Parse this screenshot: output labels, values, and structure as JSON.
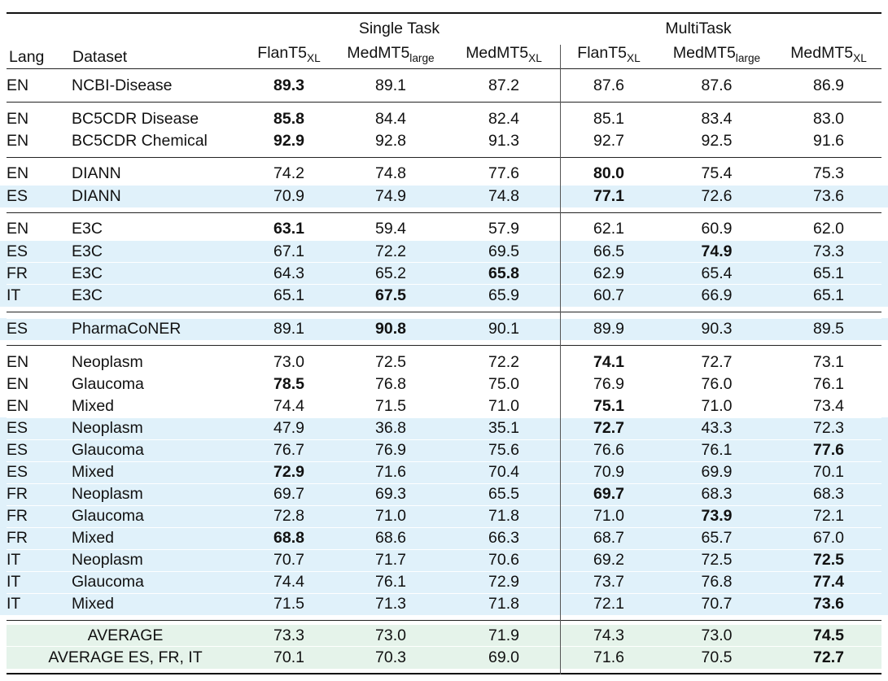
{
  "table": {
    "header": {
      "lang": "Lang",
      "dataset": "Dataset",
      "single_task": "Single Task",
      "multi_task": "MultiTask",
      "models": [
        {
          "name": "FlanT5",
          "sub": "XL"
        },
        {
          "name": "MedMT5",
          "sub": "large"
        },
        {
          "name": "MedMT5",
          "sub": "XL"
        },
        {
          "name": "FlanT5",
          "sub": "XL"
        },
        {
          "name": "MedMT5",
          "sub": "large"
        },
        {
          "name": "MedMT5",
          "sub": "XL"
        }
      ]
    },
    "groups": [
      {
        "rows": [
          {
            "lang": "EN",
            "dataset": "NCBI-Disease",
            "shade": "white",
            "values": [
              "89.3",
              "89.1",
              "87.2",
              "87.6",
              "87.6",
              "86.9"
            ],
            "bold": [
              0
            ]
          }
        ]
      },
      {
        "rows": [
          {
            "lang": "EN",
            "dataset": "BC5CDR Disease",
            "shade": "white",
            "values": [
              "85.8",
              "84.4",
              "82.4",
              "85.1",
              "83.4",
              "83.0"
            ],
            "bold": [
              0
            ]
          },
          {
            "lang": "EN",
            "dataset": "BC5CDR Chemical",
            "shade": "white",
            "values": [
              "92.9",
              "92.8",
              "91.3",
              "92.7",
              "92.5",
              "91.6"
            ],
            "bold": [
              0
            ]
          }
        ]
      },
      {
        "rows": [
          {
            "lang": "EN",
            "dataset": "DIANN",
            "shade": "white",
            "values": [
              "74.2",
              "74.8",
              "77.6",
              "80.0",
              "75.4",
              "75.3"
            ],
            "bold": [
              3
            ]
          },
          {
            "lang": "ES",
            "dataset": "DIANN",
            "shade": "blue",
            "values": [
              "70.9",
              "74.9",
              "74.8",
              "77.1",
              "72.6",
              "73.6"
            ],
            "bold": [
              3
            ]
          }
        ]
      },
      {
        "rows": [
          {
            "lang": "EN",
            "dataset": "E3C",
            "shade": "white",
            "values": [
              "63.1",
              "59.4",
              "57.9",
              "62.1",
              "60.9",
              "62.0"
            ],
            "bold": [
              0
            ]
          },
          {
            "lang": "ES",
            "dataset": "E3C",
            "shade": "blue",
            "values": [
              "67.1",
              "72.2",
              "69.5",
              "66.5",
              "74.9",
              "73.3"
            ],
            "bold": [
              4
            ]
          },
          {
            "lang": "FR",
            "dataset": "E3C",
            "shade": "blue",
            "values": [
              "64.3",
              "65.2",
              "65.8",
              "62.9",
              "65.4",
              "65.1"
            ],
            "bold": [
              2
            ]
          },
          {
            "lang": "IT",
            "dataset": "E3C",
            "shade": "blue",
            "values": [
              "65.1",
              "67.5",
              "65.9",
              "60.7",
              "66.9",
              "65.1"
            ],
            "bold": [
              1
            ]
          }
        ]
      },
      {
        "rows": [
          {
            "lang": "ES",
            "dataset": "PharmaCoNER",
            "shade": "blue",
            "values": [
              "89.1",
              "90.8",
              "90.1",
              "89.9",
              "90.3",
              "89.5"
            ],
            "bold": [
              1
            ]
          }
        ]
      },
      {
        "rows": [
          {
            "lang": "EN",
            "dataset": "Neoplasm",
            "shade": "white",
            "values": [
              "73.0",
              "72.5",
              "72.2",
              "74.1",
              "72.7",
              "73.1"
            ],
            "bold": [
              3
            ]
          },
          {
            "lang": "EN",
            "dataset": "Glaucoma",
            "shade": "white",
            "values": [
              "78.5",
              "76.8",
              "75.0",
              "76.9",
              "76.0",
              "76.1"
            ],
            "bold": [
              0
            ]
          },
          {
            "lang": "EN",
            "dataset": "Mixed",
            "shade": "white",
            "values": [
              "74.4",
              "71.5",
              "71.0",
              "75.1",
              "71.0",
              "73.4"
            ],
            "bold": [
              3
            ]
          },
          {
            "lang": "ES",
            "dataset": "Neoplasm",
            "shade": "blue",
            "values": [
              "47.9",
              "36.8",
              "35.1",
              "72.7",
              "43.3",
              "72.3"
            ],
            "bold": [
              3
            ]
          },
          {
            "lang": "ES",
            "dataset": "Glaucoma",
            "shade": "blue",
            "values": [
              "76.7",
              "76.9",
              "75.6",
              "76.6",
              "76.1",
              "77.6"
            ],
            "bold": [
              5
            ]
          },
          {
            "lang": "ES",
            "dataset": "Mixed",
            "shade": "blue",
            "values": [
              "72.9",
              "71.6",
              "70.4",
              "70.9",
              "69.9",
              "70.1"
            ],
            "bold": [
              0
            ]
          },
          {
            "lang": "FR",
            "dataset": "Neoplasm",
            "shade": "blue",
            "values": [
              "69.7",
              "69.3",
              "65.5",
              "69.7",
              "68.3",
              "68.3"
            ],
            "bold": [
              3
            ]
          },
          {
            "lang": "FR",
            "dataset": "Glaucoma",
            "shade": "blue",
            "values": [
              "72.8",
              "71.0",
              "71.8",
              "71.0",
              "73.9",
              "72.1"
            ],
            "bold": [
              4
            ]
          },
          {
            "lang": "FR",
            "dataset": "Mixed",
            "shade": "blue",
            "values": [
              "68.8",
              "68.6",
              "66.3",
              "68.7",
              "65.7",
              "67.0"
            ],
            "bold": [
              0
            ]
          },
          {
            "lang": "IT",
            "dataset": "Neoplasm",
            "shade": "blue",
            "values": [
              "70.7",
              "71.7",
              "70.6",
              "69.2",
              "72.5",
              "72.5"
            ],
            "bold": [
              5
            ]
          },
          {
            "lang": "IT",
            "dataset": "Glaucoma",
            "shade": "blue",
            "values": [
              "74.4",
              "76.1",
              "72.9",
              "73.7",
              "76.8",
              "77.4"
            ],
            "bold": [
              5
            ]
          },
          {
            "lang": "IT",
            "dataset": "Mixed",
            "shade": "blue",
            "values": [
              "71.5",
              "71.3",
              "71.8",
              "72.1",
              "70.7",
              "73.6"
            ],
            "bold": [
              5
            ]
          }
        ]
      },
      {
        "is_average": true,
        "rows": [
          {
            "label": "AVERAGE",
            "shade": "green",
            "values": [
              "73.3",
              "73.0",
              "71.9",
              "74.3",
              "73.0",
              "74.5"
            ],
            "bold": [
              5
            ]
          },
          {
            "label": "AVERAGE ES, FR, IT",
            "shade": "green",
            "values": [
              "70.1",
              "70.3",
              "69.0",
              "71.6",
              "70.5",
              "72.7"
            ],
            "bold": [
              5
            ]
          }
        ]
      }
    ]
  },
  "colors": {
    "row_highlight_blue": "#e0f1fa",
    "row_highlight_green": "#e5f3ea",
    "rule": "#111111",
    "column_divider": "#555555",
    "text": "#111111"
  }
}
